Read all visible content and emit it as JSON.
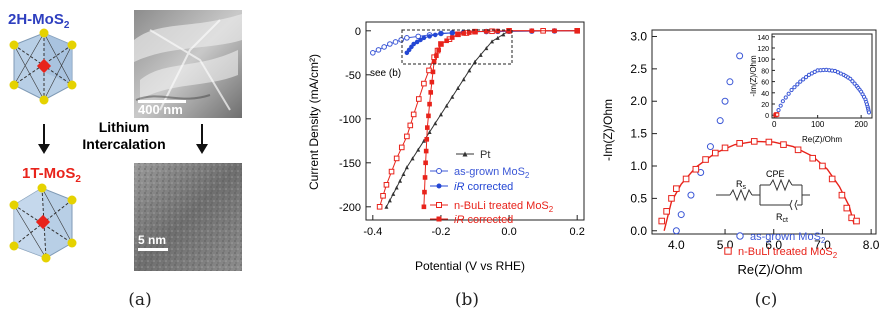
{
  "panel_a": {
    "title_top": "2H-MoS",
    "title_top_sub": "2",
    "title_bottom": "1T-MoS",
    "title_bottom_sub": "2",
    "intercalation_line1": "Lithium",
    "intercalation_line2": "Intercalation",
    "scale_top": "400 nm",
    "scale_bottom": "5 nm",
    "colors": {
      "title_top": "#2e3fbf",
      "title_bottom": "#e8231b",
      "atom": "#e5d200",
      "center": "#e8231b",
      "face": "#b8cfe6"
    }
  },
  "chart_data": [
    {
      "panel": "b",
      "type": "line",
      "xlabel": "Potential (V vs RHE)",
      "ylabel": "Current Density (mA/cm²)",
      "xlim": [
        -0.42,
        0.22
      ],
      "ylim": [
        -215,
        10
      ],
      "xticks": [
        "-0.4",
        "-0.2",
        "0.0",
        "0.2"
      ],
      "yticks": [
        "0",
        "-50",
        "-100",
        "-150",
        "-200"
      ],
      "annotation": "see (b)",
      "legend": [
        {
          "label": "Pt",
          "color": "#333333",
          "marker": "triangle"
        },
        {
          "label": "as-grown MoS",
          "sub": "2",
          "color": "#3b57d6",
          "marker": "open-circle"
        },
        {
          "label": "iR corrected",
          "italic": "iR",
          "color": "#2447d4",
          "marker": "filled-circle"
        },
        {
          "label": "n-BuLi treated MoS",
          "sub": "2",
          "color": "#e8231b",
          "marker": "open-square"
        },
        {
          "label": "iR corrected",
          "italic": "iR",
          "color": "#e8231b",
          "marker": "filled-square"
        }
      ],
      "series": [
        {
          "name": "Pt",
          "x": [
            0.0,
            -0.05,
            -0.1,
            -0.15,
            -0.2,
            -0.25,
            -0.3,
            -0.33,
            -0.36
          ],
          "y": [
            0,
            -12,
            -35,
            -65,
            -95,
            -125,
            -155,
            -178,
            -200
          ]
        },
        {
          "name": "as-grown MoS2",
          "x": [
            0.2,
            0.0,
            -0.1,
            -0.2,
            -0.3,
            -0.35,
            -0.4
          ],
          "y": [
            0,
            -0.5,
            -1,
            -3,
            -8,
            -15,
            -25
          ]
        },
        {
          "name": "iR corrected (as-grown)",
          "x": [
            0.2,
            0.0,
            -0.1,
            -0.2,
            -0.25,
            -0.28,
            -0.3
          ],
          "y": [
            0,
            -0.5,
            -1,
            -3,
            -8,
            -15,
            -25
          ]
        },
        {
          "name": "n-BuLi treated MoS2",
          "x": [
            0.2,
            0.0,
            -0.1,
            -0.15,
            -0.2,
            -0.22,
            -0.25,
            -0.28,
            -0.3,
            -0.33,
            -0.36,
            -0.38
          ],
          "y": [
            0,
            0,
            -1,
            -4,
            -15,
            -30,
            -60,
            -95,
            -120,
            -145,
            -175,
            -200
          ]
        },
        {
          "name": "iR corrected (n-BuLi)",
          "x": [
            0.2,
            0.0,
            -0.1,
            -0.15,
            -0.2,
            -0.22,
            -0.23,
            -0.24,
            -0.245,
            -0.25
          ],
          "y": [
            0,
            0,
            -1,
            -4,
            -15,
            -35,
            -70,
            -110,
            -150,
            -200
          ]
        }
      ]
    },
    {
      "panel": "c",
      "type": "scatter",
      "xlabel": "Re(Z)/Ohm",
      "ylabel": "-Im(Z)/Ohm",
      "xlim": [
        3.5,
        8.1
      ],
      "ylim": [
        -0.05,
        3.1
      ],
      "xticks": [
        "4.0",
        "5.0",
        "6.0",
        "7.0",
        "8.0"
      ],
      "yticks": [
        "0.0",
        "0.5",
        "1.0",
        "1.5",
        "2.0",
        "2.5",
        "3.0"
      ],
      "circuit": {
        "rs": "R",
        "rs_sub": "s",
        "cpe": "CPE",
        "rct": "R",
        "rct_sub": "ct"
      },
      "legend": [
        {
          "label": "as-grown MoS",
          "sub": "2",
          "color": "#3b57d6",
          "marker": "open-circle"
        },
        {
          "label": "n-BuLi treated MoS",
          "sub": "2",
          "color": "#e8231b",
          "marker": "open-square"
        }
      ],
      "series": [
        {
          "name": "as-grown MoS2",
          "x": [
            4.0,
            4.1,
            4.3,
            4.5,
            4.7,
            4.9,
            5.0,
            5.1,
            5.3
          ],
          "y": [
            0.0,
            0.25,
            0.55,
            0.9,
            1.3,
            1.7,
            2.0,
            2.3,
            2.7
          ]
        },
        {
          "name": "n-BuLi treated MoS2",
          "x": [
            3.7,
            3.8,
            3.9,
            4.0,
            4.2,
            4.4,
            4.6,
            4.8,
            5.0,
            5.3,
            5.6,
            5.9,
            6.2,
            6.5,
            6.8,
            7.0,
            7.2,
            7.4,
            7.5,
            7.6,
            7.7
          ],
          "y": [
            0.15,
            0.3,
            0.5,
            0.65,
            0.8,
            0.95,
            1.1,
            1.2,
            1.28,
            1.35,
            1.38,
            1.37,
            1.33,
            1.25,
            1.12,
            1.0,
            0.8,
            0.55,
            0.35,
            0.2,
            0.15
          ]
        },
        {
          "name": "fit",
          "x": [
            3.75,
            3.9,
            4.1,
            4.4,
            4.8,
            5.2,
            5.6,
            6.0,
            6.4,
            6.8,
            7.1,
            7.35,
            7.55,
            7.65
          ],
          "y": [
            0.0,
            0.45,
            0.72,
            0.98,
            1.2,
            1.33,
            1.38,
            1.37,
            1.3,
            1.15,
            0.95,
            0.68,
            0.38,
            0.1
          ]
        }
      ],
      "inset": {
        "xlabel": "Re(Z)/Ohm",
        "ylabel": "-Im(Z)/Ohm",
        "xlim": [
          -5,
          225
        ],
        "ylim": [
          -5,
          145
        ],
        "xticks": [
          "0",
          "100",
          "200"
        ],
        "yticks": [
          "0",
          "20",
          "40",
          "60",
          "80",
          "100",
          "120",
          "140"
        ],
        "series": [
          {
            "name": "as-grown MoS2",
            "x": [
              5,
              20,
              40,
              60,
              80,
              100,
              120,
              140,
              160,
              175,
              190,
              200,
              210,
              215,
              218
            ],
            "y": [
              1,
              25,
              45,
              60,
              72,
              80,
              81,
              79,
              72,
              65,
              52,
              42,
              28,
              15,
              5
            ]
          },
          {
            "name": "n-BuLi treated MoS2",
            "x": [
              3,
              4,
              5,
              6,
              7
            ],
            "y": [
              0,
              1,
              1.5,
              1.5,
              1
            ]
          }
        ]
      }
    }
  ],
  "captions": {
    "a": "(a)",
    "b": "(b)",
    "c": "(c)"
  }
}
